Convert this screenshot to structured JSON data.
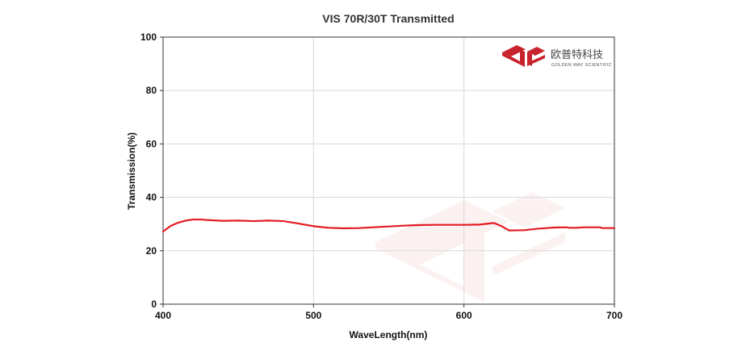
{
  "chart_data": {
    "type": "line",
    "title": "VIS 70R/30T Transmitted",
    "xlabel": "WaveLength(nm)",
    "ylabel": "Transmission(%)",
    "xlim": [
      400,
      700
    ],
    "ylim": [
      0,
      100
    ],
    "xticks": [
      400,
      500,
      600,
      700
    ],
    "yticks": [
      0,
      20,
      40,
      60,
      80,
      100
    ],
    "grid": true,
    "legend": "none",
    "series": [
      {
        "color": "#e31b23",
        "x": [
          400,
          405,
          410,
          415,
          420,
          425,
          430,
          440,
          450,
          460,
          470,
          480,
          490,
          500,
          510,
          520,
          530,
          540,
          550,
          560,
          570,
          580,
          590,
          600,
          610,
          615,
          620,
          625,
          630,
          640,
          650,
          660,
          668,
          670,
          675,
          680,
          690,
          692,
          700
        ],
        "y": [
          27.2,
          29.3,
          30.5,
          31.3,
          31.7,
          31.7,
          31.5,
          31.2,
          31.3,
          31.1,
          31.3,
          31.1,
          30.2,
          29.2,
          28.6,
          28.4,
          28.5,
          28.8,
          29.1,
          29.4,
          29.6,
          29.7,
          29.7,
          29.7,
          29.8,
          30.1,
          30.4,
          29.2,
          27.6,
          27.7,
          28.3,
          28.7,
          28.8,
          28.6,
          28.6,
          28.8,
          28.8,
          28.5,
          28.5
        ]
      }
    ]
  },
  "logo": {
    "cn_text": "欧普特科技",
    "en_text": "GOLDEN WAY SCIENTIFIC",
    "color": "#c8232c"
  }
}
